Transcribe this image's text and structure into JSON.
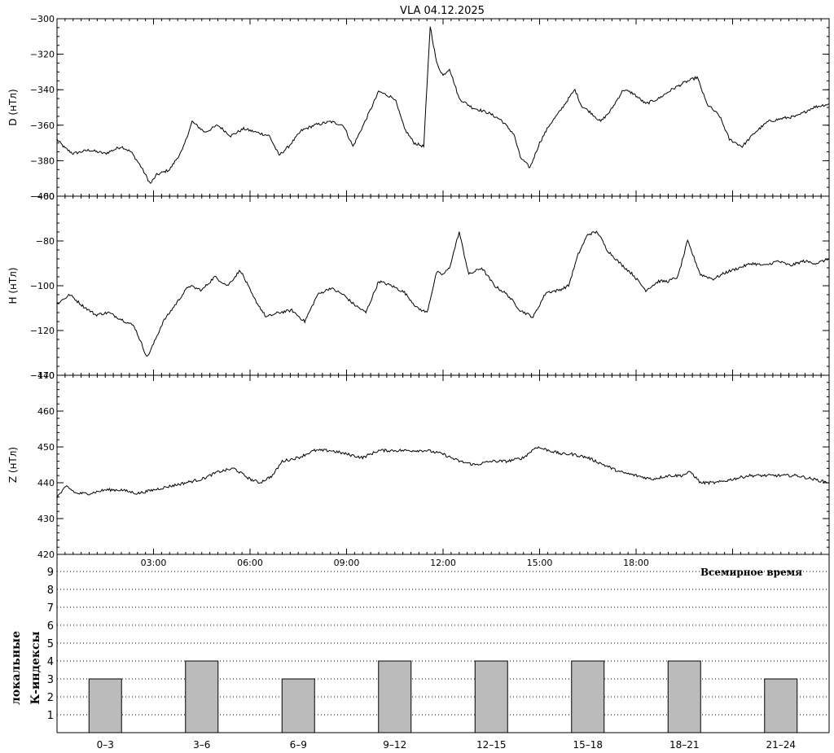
{
  "title": "VLA   04.12.2025",
  "time_axis": {
    "label": "Всемирное время",
    "ticks": [
      "03:00",
      "06:00",
      "09:00",
      "12:00",
      "15:00",
      "18:00"
    ]
  },
  "chart_data": [
    {
      "type": "line",
      "ylabel": "D (нТл)",
      "ylim": [
        -400,
        -300
      ],
      "yticks": [
        "-300",
        "-320",
        "-340",
        "-360",
        "-380",
        "-400"
      ],
      "x_hours": [
        0,
        0.25,
        0.5,
        1,
        1.5,
        2,
        2.3,
        2.6,
        2.9,
        3.1,
        3.5,
        3.9,
        4.2,
        4.6,
        5.0,
        5.4,
        5.8,
        6.2,
        6.6,
        6.9,
        7.2,
        7.6,
        8.0,
        8.5,
        8.9,
        9.2,
        9.6,
        10.0,
        10.5,
        10.8,
        11.1,
        11.4,
        11.6,
        11.8,
        12.0,
        12.2,
        12.5,
        12.9,
        13.4,
        13.8,
        14.2,
        14.4,
        14.7,
        15.0,
        15.3,
        15.6,
        15.9,
        16.1,
        16.3,
        16.6,
        16.9,
        17.2,
        17.6,
        17.9,
        18.3,
        18.7,
        19.1,
        19.5,
        19.9,
        20.2,
        20.6,
        20.9,
        21.3,
        21.7,
        22.1,
        22.6,
        23.0,
        23.5,
        24.0
      ],
      "values": [
        -368,
        -373,
        -376,
        -374,
        -376,
        -372,
        -375,
        -383,
        -393,
        -388,
        -385,
        -374,
        -358,
        -364,
        -360,
        -366,
        -362,
        -364,
        -366,
        -377,
        -372,
        -363,
        -360,
        -358,
        -360,
        -372,
        -357,
        -341,
        -345,
        -362,
        -370,
        -372,
        -304,
        -325,
        -332,
        -328,
        -345,
        -350,
        -353,
        -357,
        -365,
        -378,
        -384,
        -370,
        -360,
        -353,
        -345,
        -340,
        -349,
        -353,
        -358,
        -352,
        -340,
        -342,
        -348,
        -345,
        -340,
        -336,
        -333,
        -348,
        -355,
        -368,
        -372,
        -364,
        -358,
        -356,
        -355,
        -350,
        -348
      ]
    },
    {
      "type": "line",
      "ylabel": "H (нТл)",
      "ylim": [
        -140,
        -60
      ],
      "yticks": [
        "-60",
        "-80",
        "-100",
        "-120",
        "-140"
      ],
      "x_hours": [
        0,
        0.4,
        0.8,
        1.2,
        1.6,
        2.0,
        2.4,
        2.8,
        3.0,
        3.3,
        3.7,
        4.1,
        4.5,
        4.9,
        5.3,
        5.7,
        6.1,
        6.5,
        6.9,
        7.3,
        7.7,
        8.1,
        8.5,
        8.9,
        9.2,
        9.6,
        10.0,
        10.4,
        10.8,
        11.2,
        11.5,
        11.8,
        12.0,
        12.2,
        12.5,
        12.8,
        13.2,
        13.6,
        14.0,
        14.4,
        14.8,
        15.2,
        15.6,
        15.9,
        16.2,
        16.5,
        16.8,
        17.1,
        17.5,
        17.9,
        18.3,
        18.7,
        19.0,
        19.3,
        19.6,
        20.0,
        20.4,
        20.8,
        21.2,
        21.6,
        22.0,
        22.4,
        22.8,
        23.2,
        23.6,
        24.0
      ],
      "values": [
        -108,
        -104,
        -109,
        -113,
        -112,
        -115,
        -118,
        -132,
        -126,
        -116,
        -108,
        -100,
        -102,
        -96,
        -100,
        -93,
        -105,
        -114,
        -112,
        -111,
        -116,
        -104,
        -101,
        -104,
        -108,
        -112,
        -98,
        -100,
        -103,
        -110,
        -112,
        -94,
        -95,
        -92,
        -76,
        -95,
        -92,
        -100,
        -104,
        -111,
        -114,
        -103,
        -102,
        -100,
        -86,
        -77,
        -76,
        -84,
        -90,
        -95,
        -102,
        -98,
        -98,
        -96,
        -80,
        -95,
        -97,
        -94,
        -92,
        -90,
        -91,
        -89,
        -91,
        -89,
        -90,
        -88
      ]
    },
    {
      "type": "line",
      "ylabel": "Z (нТл)",
      "ylim": [
        420,
        470
      ],
      "yticks": [
        "470",
        "460",
        "450",
        "440",
        "430",
        "420"
      ],
      "x_hours": [
        0,
        0.3,
        0.6,
        1.0,
        1.5,
        2.0,
        2.5,
        3.0,
        3.5,
        4.0,
        4.5,
        5.0,
        5.5,
        6.0,
        6.3,
        6.7,
        7.0,
        7.5,
        8.0,
        8.5,
        9.0,
        9.5,
        10.0,
        10.5,
        11.0,
        11.5,
        12.0,
        12.5,
        13.0,
        13.5,
        14.0,
        14.5,
        14.9,
        15.3,
        15.7,
        16.0,
        16.5,
        17.0,
        17.5,
        18.0,
        18.5,
        19.0,
        19.4,
        19.7,
        20.0,
        20.5,
        21.0,
        21.5,
        22.0,
        22.5,
        23.0,
        23.5,
        24.0
      ],
      "values": [
        436,
        439,
        437,
        437,
        438,
        438,
        437,
        438,
        439,
        440,
        441,
        443,
        444,
        441,
        440,
        442,
        446,
        447,
        449,
        449,
        448,
        447,
        449,
        449,
        449,
        449,
        448,
        446,
        445,
        446,
        446,
        447,
        450,
        449,
        448,
        448,
        447,
        445,
        443,
        442,
        441,
        442,
        442,
        443,
        440,
        440,
        441,
        442,
        442,
        442,
        442,
        441,
        440
      ]
    },
    {
      "type": "bar",
      "ylabel": "К-индексы",
      "ylabel2": "локальные",
      "ylim": [
        0,
        10
      ],
      "yticks": [
        "1",
        "2",
        "3",
        "4",
        "5",
        "6",
        "7",
        "8",
        "9"
      ],
      "categories": [
        "0–3",
        "3–6",
        "6–9",
        "9–12",
        "12–15",
        "15–18",
        "18–21",
        "21–24"
      ],
      "values": [
        3,
        4,
        3,
        4,
        4,
        4,
        4,
        3
      ]
    }
  ],
  "colors": {
    "line": "#000000",
    "bar_fill": "#bbbbbb",
    "grid": "#000000"
  }
}
